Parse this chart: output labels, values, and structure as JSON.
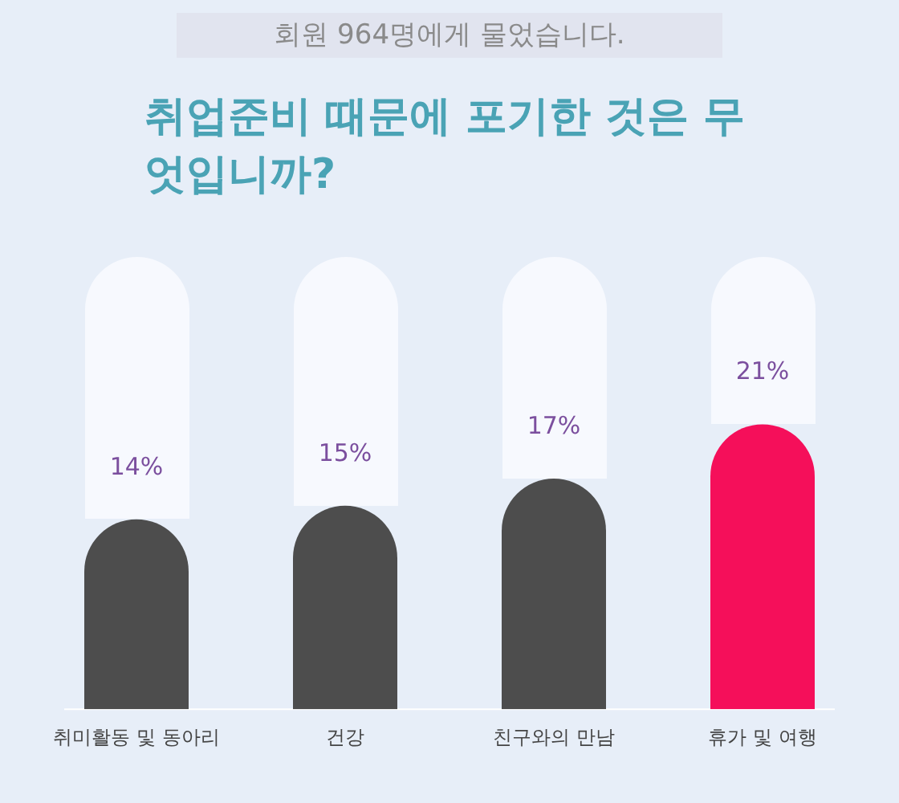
{
  "chart_data": {
    "type": "bar",
    "title": "취업준비 때문에 포기한 것은 무엇입니까?",
    "subtitle": "회원 964명에게 물었습니다.",
    "categories": [
      "취미활동 및 동아리",
      "건강",
      "친구와의 만남",
      "휴가 및 여행"
    ],
    "values": [
      14,
      15,
      17,
      21
    ],
    "colors": [
      "#4d4d4d",
      "#4d4d4d",
      "#4d4d4d",
      "#f50f5a"
    ],
    "value_labels": [
      "14%",
      "15%",
      "17%",
      "21%"
    ],
    "grid": false,
    "legend": false
  }
}
